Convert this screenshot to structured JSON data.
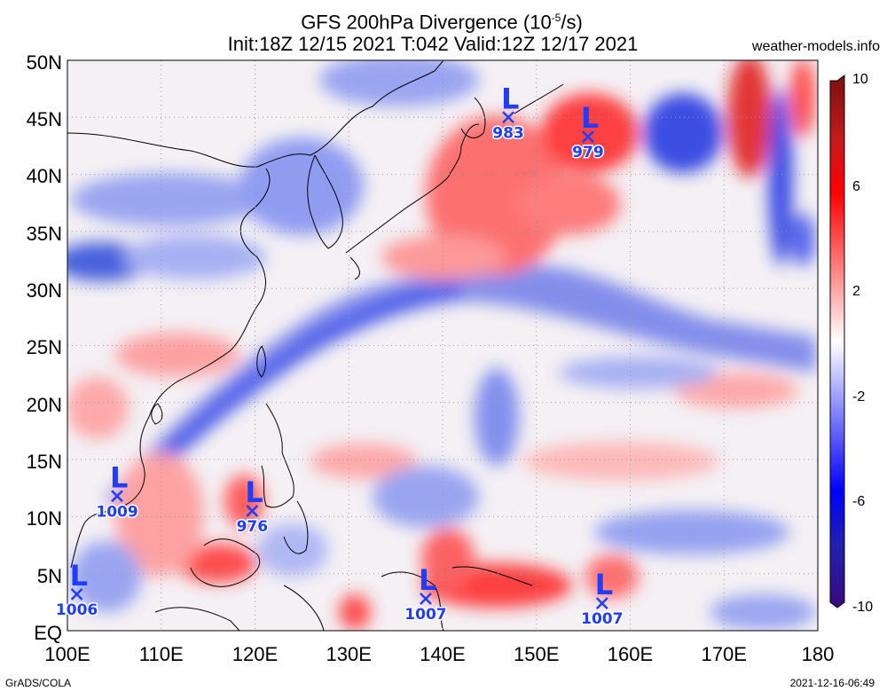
{
  "header": {
    "title": "GFS 200hPa Divergence (10",
    "title_exp": "-5",
    "title_unit": "/s)",
    "subtitle": "Init:18Z 12/15 2021 T:042 Valid:12Z 12/17 2021",
    "site": "weather-models.info"
  },
  "map": {
    "lon_labels": [
      "100E",
      "110E",
      "120E",
      "130E",
      "140E",
      "150E",
      "160E",
      "170E",
      "180"
    ],
    "lat_labels": [
      "50N",
      "45N",
      "40N",
      "35N",
      "30N",
      "25N",
      "20N",
      "15N",
      "10N",
      "5N",
      "EQ"
    ],
    "lon_range": [
      100,
      180
    ],
    "lat_range": [
      0,
      50
    ]
  },
  "colorbar": {
    "labels": [
      "10",
      "6",
      "2",
      "-2",
      "-6",
      "-10"
    ],
    "colors": {
      "max": "#7a1010",
      "red": "#ff0000",
      "white": "#ffffff",
      "blue": "#0000ff",
      "min": "#3a0a80"
    }
  },
  "lows": [
    {
      "letter": "L",
      "pressure": "983",
      "lon": 147,
      "lat": 45
    },
    {
      "letter": "L",
      "pressure": "979",
      "lon": 155.5,
      "lat": 43.3
    },
    {
      "letter": "L",
      "pressure": "1009",
      "lon": 105.3,
      "lat": 11.8
    },
    {
      "letter": "L",
      "pressure": "976",
      "lon": 119.7,
      "lat": 10.5
    },
    {
      "letter": "L",
      "pressure": "1006",
      "lon": 101,
      "lat": 3.2
    },
    {
      "letter": "L",
      "pressure": "1007",
      "lon": 138.2,
      "lat": 2.8
    },
    {
      "letter": "L",
      "pressure": "1007",
      "lon": 157,
      "lat": 2.4
    }
  ],
  "footer": {
    "left": "GrADS/COLA",
    "right": "2021-12-16-06:49"
  }
}
